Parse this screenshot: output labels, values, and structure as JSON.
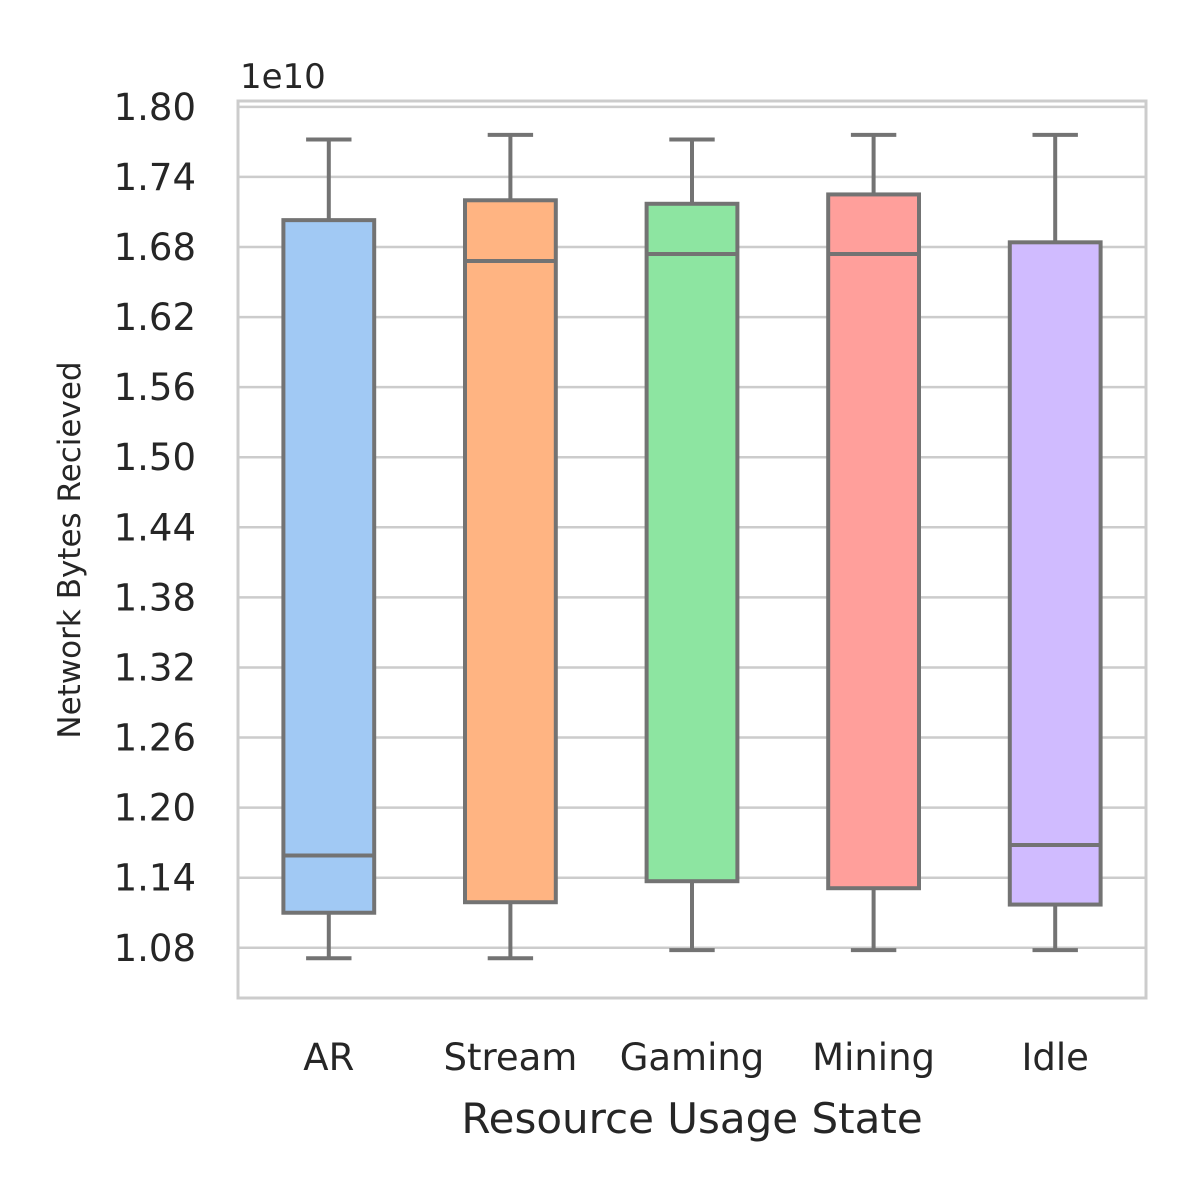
{
  "chart_data": {
    "type": "box",
    "xlabel": "Resource Usage State",
    "ylabel": "Network Bytes Recieved",
    "offset_label": "1e10",
    "ylim": [
      1.037,
      1.805
    ],
    "yticks": [
      "1.08",
      "1.14",
      "1.20",
      "1.26",
      "1.32",
      "1.38",
      "1.44",
      "1.50",
      "1.56",
      "1.62",
      "1.68",
      "1.74",
      "1.80"
    ],
    "grid": true,
    "categories": [
      "AR",
      "Stream",
      "Gaming",
      "Mining",
      "Idle"
    ],
    "colors": [
      "#a1c9f4",
      "#ffb482",
      "#8de5a1",
      "#ff9f9b",
      "#d0bbff"
    ],
    "boxes": [
      {
        "category": "AR",
        "whisker_low": 1.071,
        "q1": 1.11,
        "median": 1.159,
        "q3": 1.703,
        "whisker_high": 1.772
      },
      {
        "category": "Stream",
        "whisker_low": 1.071,
        "q1": 1.119,
        "median": 1.668,
        "q3": 1.72,
        "whisker_high": 1.776
      },
      {
        "category": "Gaming",
        "whisker_low": 1.078,
        "q1": 1.137,
        "median": 1.674,
        "q3": 1.717,
        "whisker_high": 1.772
      },
      {
        "category": "Mining",
        "whisker_low": 1.078,
        "q1": 1.131,
        "median": 1.674,
        "q3": 1.725,
        "whisker_high": 1.776
      },
      {
        "category": "Idle",
        "whisker_low": 1.078,
        "q1": 1.117,
        "median": 1.168,
        "q3": 1.684,
        "whisker_high": 1.776
      }
    ]
  }
}
